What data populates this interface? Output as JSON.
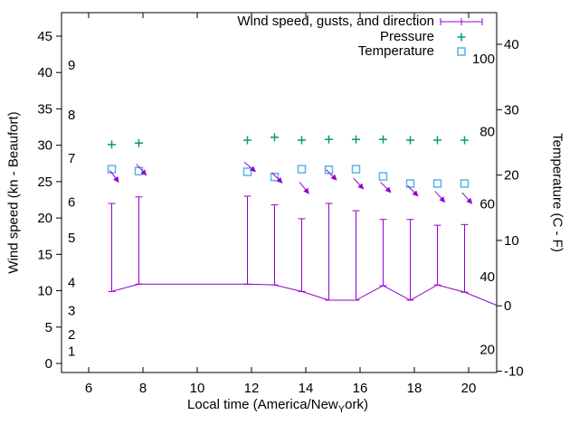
{
  "chart_data": {
    "type": "line",
    "title": "",
    "xlabel": {
      "prefix": "Local time (America/New",
      "subscript": "Y",
      "suffix": "ork)",
      "full": "Local time (America/New_York)"
    },
    "ylabel_left": "Wind speed (kn - Beaufort)",
    "ylabel_right": "Temperature (C - F)",
    "x_axis": {
      "min": 5.0,
      "max": 21.03,
      "tick_values": [
        6,
        8,
        10,
        12,
        14,
        16,
        18,
        20
      ]
    },
    "y_axis_left": {
      "unit": "kn",
      "min": -1.2,
      "max": 48.2,
      "tick_values": [
        0,
        5,
        10,
        15,
        20,
        25,
        30,
        35,
        40,
        45
      ],
      "beaufort_inner_labels": [
        {
          "label": "9",
          "kn": 41.0
        },
        {
          "label": "8",
          "kn": 34.2
        },
        {
          "label": "7",
          "kn": 28.2
        },
        {
          "label": "6",
          "kn": 22.2
        },
        {
          "label": "5",
          "kn": 17.3
        },
        {
          "label": "4",
          "kn": 11.1
        },
        {
          "label": "3",
          "kn": 7.3
        },
        {
          "label": "2",
          "kn": 4.0
        },
        {
          "label": "1",
          "kn": 1.7
        }
      ]
    },
    "y_axis_right": {
      "unit": "C",
      "min": -10.3,
      "max": 44.8,
      "tick_values": [
        -10,
        0,
        10,
        20,
        30,
        40
      ],
      "fahrenheit_inner_labels": [
        100,
        80,
        60,
        40,
        20
      ]
    },
    "legend": {
      "position": "top-right-inside",
      "entries": [
        {
          "label": "Wind speed, gusts, and direction",
          "color": "#9400d3",
          "marker": "errorbar-line"
        },
        {
          "label": "Pressure",
          "color": "#009e73",
          "marker": "plus"
        },
        {
          "label": "Temperature",
          "color": "#56b4e9",
          "marker": "open-square"
        }
      ]
    },
    "colors": {
      "wind": "#9400d3",
      "pressure": "#009e73",
      "temperature": "#56b4e9",
      "axis": "#000000",
      "background": "#ffffff"
    },
    "times": [
      6.85,
      7.85,
      11.85,
      12.85,
      13.85,
      14.85,
      15.85,
      16.85,
      17.85,
      18.85,
      19.85
    ],
    "series": {
      "wind_speed": {
        "unit": "kn",
        "axis": "left",
        "values": [
          9.9,
          10.9,
          10.9,
          10.8,
          9.9,
          8.7,
          8.7,
          10.7,
          8.7,
          10.8,
          9.8
        ],
        "line_extension": {
          "x": 21.03,
          "value": 8.0
        }
      },
      "wind_gusts": {
        "unit": "kn",
        "axis": "left",
        "values": [
          22.0,
          22.9,
          23.0,
          21.8,
          19.9,
          22.0,
          21.0,
          19.8,
          19.8,
          19.0,
          19.1
        ]
      },
      "wind_direction": {
        "marker": "arrow-pointing-down-right",
        "y_kn": [
          25.7,
          26.6,
          27.0,
          25.5,
          24.1,
          25.9,
          24.7,
          24.2,
          23.7,
          22.9,
          22.7
        ],
        "angle_deg_below_horizontal": [
          53,
          48,
          40,
          45,
          51,
          45,
          48,
          45,
          45,
          48,
          48
        ]
      },
      "pressure": {
        "plotted_against": "left_axis_scale",
        "values": [
          30.1,
          30.3,
          30.7,
          31.1,
          30.7,
          30.8,
          30.8,
          30.8,
          30.7,
          30.7,
          30.7
        ]
      },
      "temperature": {
        "unit": "C",
        "axis": "right",
        "values": [
          20.9,
          20.6,
          20.5,
          19.7,
          20.9,
          20.8,
          20.9,
          19.8,
          18.7,
          18.7,
          18.7
        ]
      }
    }
  }
}
